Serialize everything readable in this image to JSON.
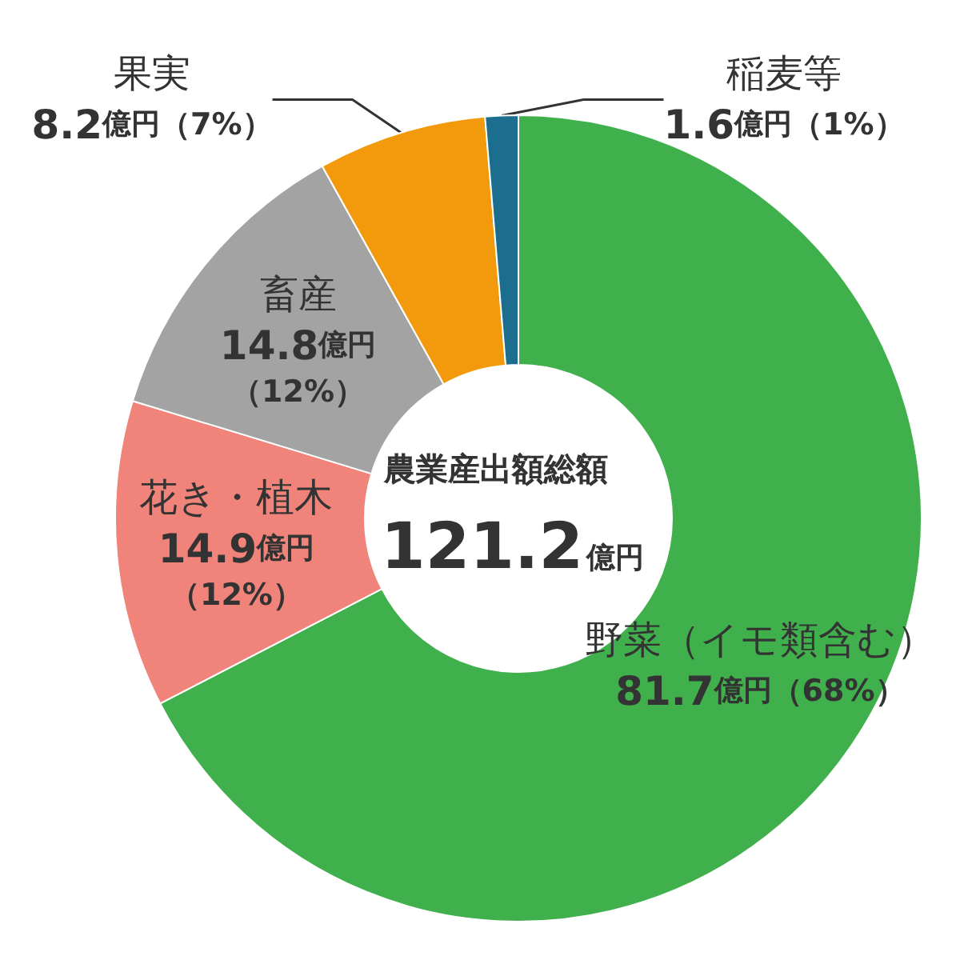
{
  "chart_data": {
    "type": "donut",
    "categories": [
      "野菜（イモ類含む）",
      "花き・植木",
      "畜産",
      "果実",
      "稲麦等"
    ],
    "values": [
      81.7,
      14.9,
      14.8,
      8.2,
      1.6
    ],
    "colors": [
      "#40b04c",
      "#f0847a",
      "#a3a3a3",
      "#f29a0c",
      "#1b6e8e"
    ],
    "value_labels": [
      "81.7億円（68%）",
      "14.9億円（12%）",
      "14.8億円（12%）",
      "8.2億円（7%）",
      "1.6億円（1%）"
    ],
    "annotations": [
      "農業産出額総額",
      "121.2億円"
    ],
    "legend": false
  }
}
